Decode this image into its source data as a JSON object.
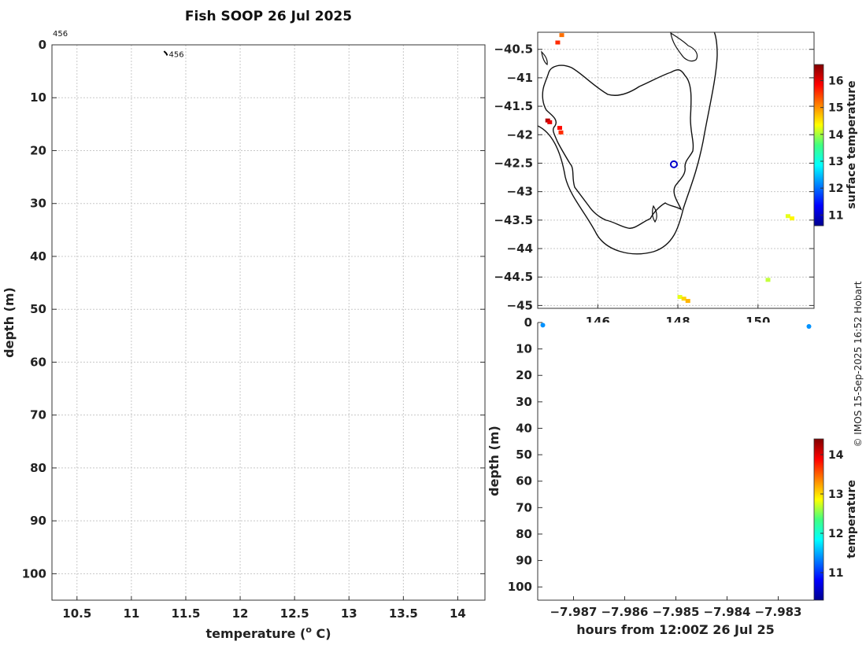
{
  "title": "Fish SOOP 26 Jul 2025",
  "credit": "© IMOS 15-Sep-2025 16:52 Hobart",
  "chart_data": [
    {
      "id": "profile",
      "type": "line",
      "xlabel": "temperature (",
      "xlabel_sup": "o",
      "xlabel_tail": " C)",
      "ylabel": "depth (m)",
      "xlim": [
        10.27,
        14.25
      ],
      "ylim": [
        0,
        105
      ],
      "y_reversed": true,
      "xticks": [
        10.5,
        11,
        11.5,
        12,
        12.5,
        13,
        13.5,
        14
      ],
      "yticks": [
        0,
        10,
        20,
        30,
        40,
        50,
        60,
        70,
        80,
        90,
        100
      ],
      "grid": true,
      "top_annotation": "456",
      "series": [
        {
          "name": "456",
          "points": [
            [
              11.3,
              1.2
            ],
            [
              11.32,
              1.6
            ],
            [
              11.33,
              2.0
            ]
          ],
          "label": "456"
        }
      ]
    },
    {
      "id": "map",
      "type": "scatter",
      "xlim": [
        144.5,
        151.4
      ],
      "ylim": [
        -45.05,
        -40.2
      ],
      "xticks": [
        146,
        148,
        150
      ],
      "yticks": [
        -40.5,
        -41,
        -41.5,
        -42,
        -42.5,
        -43,
        -43.5,
        -44,
        -44.5,
        -45
      ],
      "grid": true,
      "colorbar": {
        "label": "surface temperature",
        "min": 10.6,
        "max": 16.6,
        "ticks": [
          11,
          12,
          13,
          14,
          15,
          16
        ]
      },
      "station_marker": {
        "lon": 147.9,
        "lat": -42.52
      },
      "points": [
        {
          "lon": 145.1,
          "lat": -40.25,
          "value": 15.2
        },
        {
          "lon": 145.0,
          "lat": -40.38,
          "value": 15.6
        },
        {
          "lon": 144.75,
          "lat": -41.75,
          "value": 16.3
        },
        {
          "lon": 144.8,
          "lat": -41.78,
          "value": 16.0
        },
        {
          "lon": 145.05,
          "lat": -41.88,
          "value": 15.8
        },
        {
          "lon": 145.08,
          "lat": -41.96,
          "value": 15.6
        },
        {
          "lon": 150.75,
          "lat": -43.43,
          "value": 14.2
        },
        {
          "lon": 150.85,
          "lat": -43.47,
          "value": 14.4
        },
        {
          "lon": 150.25,
          "lat": -44.55,
          "value": 14.0
        },
        {
          "lon": 148.05,
          "lat": -44.85,
          "value": 14.2
        },
        {
          "lon": 148.15,
          "lat": -44.88,
          "value": 14.6
        },
        {
          "lon": 148.25,
          "lat": -44.92,
          "value": 14.8
        }
      ]
    },
    {
      "id": "section",
      "type": "scatter",
      "xlabel": "hours from 12:00Z 26 Jul 25",
      "ylabel": "depth (m)",
      "xlim": [
        -7.9877,
        -7.9823
      ],
      "ylim": [
        0,
        105
      ],
      "y_reversed": true,
      "xticks": [
        -7.987,
        -7.986,
        -7.985,
        -7.984,
        -7.983
      ],
      "yticks": [
        0,
        10,
        20,
        30,
        40,
        50,
        60,
        70,
        80,
        90,
        100
      ],
      "colorbar": {
        "label": "temperature",
        "min": 10.3,
        "max": 14.4,
        "ticks": [
          11,
          12,
          13,
          14
        ]
      },
      "points": [
        {
          "x": -7.9876,
          "depth": 1.0,
          "value": 11.4
        },
        {
          "x": -7.9824,
          "depth": 1.5,
          "value": 11.4
        }
      ]
    }
  ]
}
